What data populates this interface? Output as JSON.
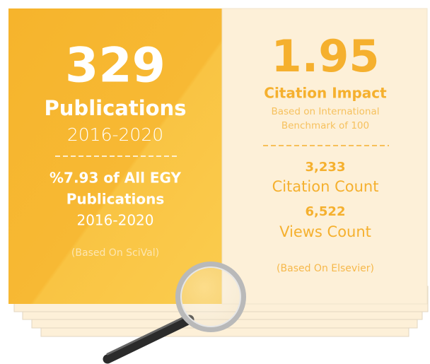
{
  "left": {
    "number": "329",
    "label": "Publications",
    "period": "2016-2020",
    "share_line1": "%7.93 of All EGY",
    "share_line2": "Publications",
    "share_period": "2016-2020",
    "source": "(Based On SciVal)"
  },
  "right": {
    "number": "1.95",
    "label": "Citation Impact",
    "note_line1": "Based on International",
    "note_line2": "Benchmark of 100",
    "citation_value": "3,233",
    "citation_label": "Citation Count",
    "views_value": "6,522",
    "views_label": "Views Count",
    "source": "(Based On Elsevier)"
  }
}
